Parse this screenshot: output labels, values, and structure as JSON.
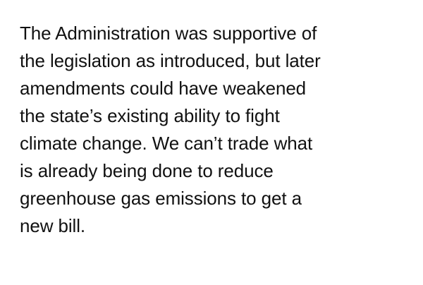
{
  "statement": {
    "lines": [
      "The Administration was supportive of",
      "the legislation as introduced, but later",
      "amendments could have weakened",
      "the state’s existing ability to fight",
      "climate change. We can’t trade what",
      "is already being done to reduce",
      "greenhouse gas emissions to get a",
      "new bill."
    ]
  }
}
